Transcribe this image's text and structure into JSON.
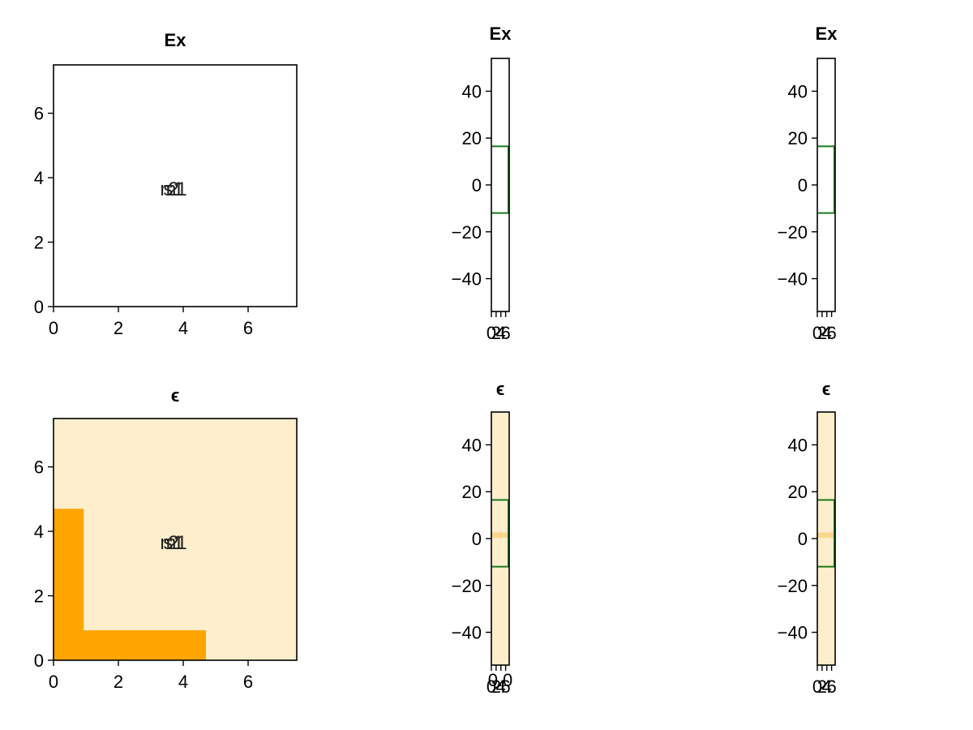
{
  "chart_data": [
    {
      "type": "heatmap",
      "title": "Ex",
      "xlim": [
        0,
        7.5
      ],
      "ylim": [
        0,
        7.5
      ],
      "xticks": [
        "0",
        "2",
        "4",
        "6"
      ],
      "xtick_values": [
        0,
        2,
        4,
        6
      ],
      "yticks": [
        "0",
        "2",
        "4",
        "6"
      ],
      "ytick_values": [
        0,
        2,
        4,
        6
      ],
      "background": "#ffffff",
      "annotations": [
        {
          "text": "m1",
          "x": 3.7,
          "y": 3.65
        },
        {
          "text": "s1",
          "x": 3.7,
          "y": 3.65
        },
        {
          "text": "2",
          "x": 3.7,
          "y": 3.65
        }
      ]
    },
    {
      "type": "heatmap",
      "title": "Ex",
      "xlim": [
        0,
        7.5
      ],
      "ylim": [
        -54,
        54
      ],
      "xticks": [
        "0",
        "2",
        "4",
        "6"
      ],
      "xtick_values": [
        0,
        2,
        4,
        6
      ],
      "yticks": [
        "−40",
        "−20",
        "0",
        "20",
        "40"
      ],
      "ytick_values": [
        -40,
        -20,
        0,
        20,
        40
      ],
      "background": "#ffffff",
      "green_lines": [
        16.5,
        -12
      ]
    },
    {
      "type": "heatmap",
      "title": "Ex",
      "xlim": [
        0,
        7.5
      ],
      "ylim": [
        -54,
        54
      ],
      "xticks": [
        "0",
        "2",
        "4",
        "6"
      ],
      "xtick_values": [
        0,
        2,
        4,
        6
      ],
      "yticks": [
        "−40",
        "−20",
        "0",
        "20",
        "40"
      ],
      "ytick_values": [
        -40,
        -20,
        0,
        20,
        40
      ],
      "background": "#ffffff",
      "green_lines": [
        16.5,
        -12
      ]
    },
    {
      "type": "heatmap",
      "title": "ϵ",
      "xlim": [
        0,
        7.5
      ],
      "ylim": [
        0,
        7.5
      ],
      "xticks": [
        "0",
        "2",
        "4",
        "6"
      ],
      "xtick_values": [
        0,
        2,
        4,
        6
      ],
      "yticks": [
        "0",
        "2",
        "4",
        "6"
      ],
      "ytick_values": [
        0,
        2,
        4,
        6
      ],
      "background": "#feeecc",
      "cells": [
        {
          "x0": 0,
          "x1": 0.93,
          "y0": 0,
          "y1": 4.7,
          "color": "#ffa500"
        },
        {
          "x0": 0,
          "x1": 4.7,
          "y0": 0,
          "y1": 0.93,
          "color": "#ffa500"
        }
      ],
      "annotations": [
        {
          "text": "m1",
          "x": 3.7,
          "y": 3.65
        },
        {
          "text": "s1",
          "x": 3.7,
          "y": 3.65
        },
        {
          "text": "2",
          "x": 3.7,
          "y": 3.65
        }
      ]
    },
    {
      "type": "heatmap",
      "title": "ϵ",
      "xlim": [
        0,
        7.5
      ],
      "ylim": [
        -54,
        54
      ],
      "xticks": [
        "0",
        "2",
        "4",
        "6"
      ],
      "xtick_values": [
        0,
        2,
        4,
        6
      ],
      "extra_xtick_labels": [
        "0.0"
      ],
      "yticks": [
        "−40",
        "−20",
        "0",
        "20",
        "40"
      ],
      "ytick_values": [
        -40,
        -20,
        0,
        20,
        40
      ],
      "background": "#feeecc",
      "cells": [
        {
          "x0": 0,
          "x1": 7.5,
          "y0": 0.3,
          "y1": 2.6,
          "color": "#fcd58c"
        }
      ],
      "green_lines": [
        16.5,
        -12
      ]
    },
    {
      "type": "heatmap",
      "title": "ϵ",
      "xlim": [
        0,
        7.5
      ],
      "ylim": [
        -54,
        54
      ],
      "xticks": [
        "0",
        "2",
        "4",
        "6"
      ],
      "xtick_values": [
        0,
        2,
        4,
        6
      ],
      "yticks": [
        "−40",
        "−20",
        "0",
        "20",
        "40"
      ],
      "ytick_values": [
        -40,
        -20,
        0,
        20,
        40
      ],
      "background": "#feeecc",
      "cells": [
        {
          "x0": 0,
          "x1": 7.5,
          "y0": 0.3,
          "y1": 2.6,
          "color": "#fcd58c"
        }
      ],
      "green_lines": [
        16.5,
        -12
      ]
    }
  ],
  "colors": {
    "green_line": "#1a7a1a",
    "frame": "#000000"
  }
}
